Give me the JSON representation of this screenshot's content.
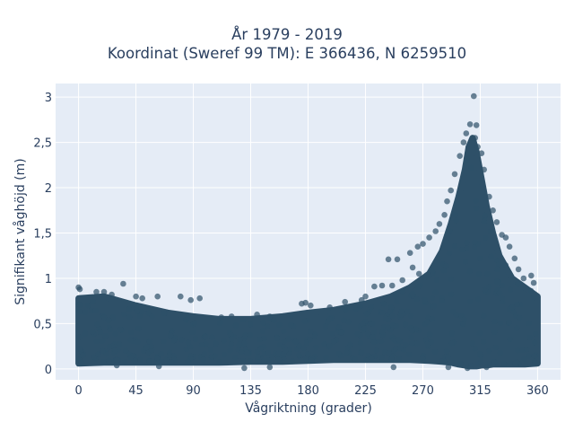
{
  "chart_data": {
    "type": "scatter",
    "title_line1": "År 1979 - 2019",
    "title_line2": "Koordinat (Sweref 99 TM): E 366436, N 6259510",
    "xlabel": "Vågriktning (grader)",
    "ylabel": "Signifikant våghöjd (m)",
    "x_ticks": [
      0,
      45,
      90,
      135,
      180,
      225,
      270,
      315,
      360
    ],
    "y_ticks": [
      0,
      0.5,
      1,
      1.5,
      2,
      2.5,
      3
    ],
    "y_tick_labels": [
      "0",
      "0,5",
      "1",
      "1,5",
      "2",
      "2,5",
      "3"
    ],
    "xlim": [
      -18,
      378
    ],
    "ylim": [
      -0.12,
      3.15
    ],
    "grid": true,
    "colors": {
      "plot_background": "#e5ecf6",
      "grid": "#ffffff",
      "marker": "#2e5068",
      "text": "#2a3f5f"
    },
    "envelope": {
      "x": [
        0,
        20,
        45,
        70,
        90,
        110,
        135,
        160,
        180,
        200,
        225,
        245,
        260,
        275,
        285,
        292,
        298,
        303,
        306,
        309,
        312,
        316,
        320,
        325,
        330,
        340,
        350,
        360
      ],
      "y_low": [
        0.06,
        0.07,
        0.07,
        0.07,
        0.07,
        0.07,
        0.08,
        0.08,
        0.09,
        0.1,
        0.1,
        0.1,
        0.1,
        0.09,
        0.08,
        0.07,
        0.05,
        0.04,
        0.03,
        0.03,
        0.03,
        0.04,
        0.04,
        0.05,
        0.05,
        0.05,
        0.05,
        0.06
      ],
      "y_high": [
        0.78,
        0.8,
        0.7,
        0.62,
        0.58,
        0.55,
        0.55,
        0.58,
        0.62,
        0.65,
        0.72,
        0.8,
        0.9,
        1.05,
        1.3,
        1.6,
        1.9,
        2.2,
        2.45,
        2.55,
        2.4,
        2.1,
        1.8,
        1.5,
        1.25,
        1.0,
        0.9,
        0.8
      ]
    },
    "highlighted_points": [
      {
        "x": 310,
        "y": 3.01
      },
      {
        "x": 307,
        "y": 2.7
      },
      {
        "x": 312,
        "y": 2.69
      },
      {
        "x": 304,
        "y": 2.6
      },
      {
        "x": 311,
        "y": 2.55
      },
      {
        "x": 302,
        "y": 2.5
      },
      {
        "x": 313,
        "y": 2.45
      },
      {
        "x": 299,
        "y": 2.35
      },
      {
        "x": 316,
        "y": 2.38
      },
      {
        "x": 318,
        "y": 2.2
      },
      {
        "x": 295,
        "y": 2.15
      },
      {
        "x": 292,
        "y": 1.97
      },
      {
        "x": 322,
        "y": 1.9
      },
      {
        "x": 289,
        "y": 1.85
      },
      {
        "x": 325,
        "y": 1.75
      },
      {
        "x": 328,
        "y": 1.62
      },
      {
        "x": 287,
        "y": 1.7
      },
      {
        "x": 283,
        "y": 1.6
      },
      {
        "x": 280,
        "y": 1.52
      },
      {
        "x": 332,
        "y": 1.48
      },
      {
        "x": 335,
        "y": 1.45
      },
      {
        "x": 275,
        "y": 1.45
      },
      {
        "x": 270,
        "y": 1.38
      },
      {
        "x": 266,
        "y": 1.35
      },
      {
        "x": 338,
        "y": 1.35
      },
      {
        "x": 260,
        "y": 1.28
      },
      {
        "x": 243,
        "y": 1.21
      },
      {
        "x": 250,
        "y": 1.21
      },
      {
        "x": 342,
        "y": 1.22
      },
      {
        "x": 345,
        "y": 1.1
      },
      {
        "x": 262,
        "y": 1.12
      },
      {
        "x": 267,
        "y": 1.05
      },
      {
        "x": 355,
        "y": 1.03
      },
      {
        "x": 349,
        "y": 1.0
      },
      {
        "x": 357,
        "y": 0.95
      },
      {
        "x": 254,
        "y": 0.98
      },
      {
        "x": 246,
        "y": 0.92
      },
      {
        "x": 232,
        "y": 0.91
      },
      {
        "x": 238,
        "y": 0.92
      },
      {
        "x": 0,
        "y": 0.9
      },
      {
        "x": 1,
        "y": 0.88
      },
      {
        "x": 35,
        "y": 0.94
      },
      {
        "x": 20,
        "y": 0.85
      },
      {
        "x": 14,
        "y": 0.85
      },
      {
        "x": 26,
        "y": 0.82
      },
      {
        "x": 45,
        "y": 0.8
      },
      {
        "x": 50,
        "y": 0.78
      },
      {
        "x": 62,
        "y": 0.8
      },
      {
        "x": 80,
        "y": 0.8
      },
      {
        "x": 95,
        "y": 0.78
      },
      {
        "x": 88,
        "y": 0.76
      },
      {
        "x": 175,
        "y": 0.72
      },
      {
        "x": 182,
        "y": 0.7
      },
      {
        "x": 178,
        "y": 0.73
      },
      {
        "x": 197,
        "y": 0.68
      },
      {
        "x": 209,
        "y": 0.74
      },
      {
        "x": 222,
        "y": 0.76
      },
      {
        "x": 225,
        "y": 0.8
      },
      {
        "x": 120,
        "y": 0.58
      },
      {
        "x": 140,
        "y": 0.6
      },
      {
        "x": 150,
        "y": 0.58
      },
      {
        "x": 112,
        "y": 0.57
      },
      {
        "x": 247,
        "y": 0.02
      },
      {
        "x": 290,
        "y": 0.02
      },
      {
        "x": 305,
        "y": 0.01
      },
      {
        "x": 320,
        "y": 0.02
      },
      {
        "x": 130,
        "y": 0.01
      },
      {
        "x": 150,
        "y": 0.02
      },
      {
        "x": 63,
        "y": 0.03
      },
      {
        "x": 30,
        "y": 0.04
      }
    ]
  }
}
